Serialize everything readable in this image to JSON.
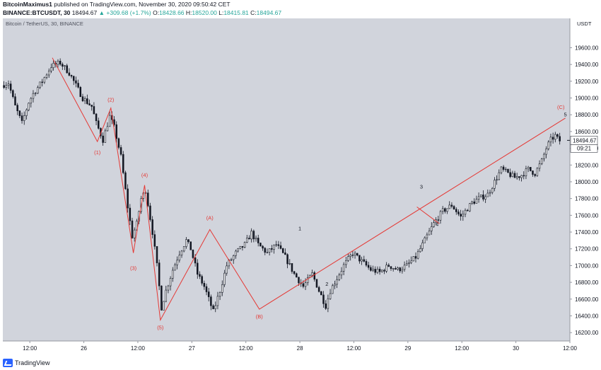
{
  "header": {
    "author": "BitcoinMaximus1",
    "published": "published on TradingView.com, November 30, 2020 09:50:42 CET",
    "symbol": "BINANCE:BTCUSDT, 30",
    "last": "18494.67",
    "change": "▲ +309.68 (+1.7%)",
    "o_label": "O:",
    "o_value": "18428.66",
    "h_label": "H:",
    "h_value": "18520.00",
    "l_label": "L:",
    "l_value": "18415.81",
    "c_label": "C:",
    "c_value": "18494.67"
  },
  "footer": {
    "brand": "TradingView"
  },
  "colors": {
    "background": "#d1d4dc",
    "candle": "#131722",
    "wave_line": "#e53935",
    "wave_label_red": "#e53935",
    "wave_label_black": "#131722",
    "price_badge": "#ffffff"
  },
  "chart_data": {
    "type": "candlestick",
    "title": "Bitcoin / TetherUS, 30, BINANCE",
    "y_axis_unit": "USDT",
    "ylim": [
      16100,
      19950
    ],
    "y_ticks": [
      16200,
      16400,
      16600,
      16800,
      17000,
      17200,
      17400,
      17600,
      17800,
      18000,
      18200,
      18400,
      18600,
      18800,
      19000,
      19200,
      19400,
      19600
    ],
    "y_tick_labels": [
      "16200.00",
      "16400.00",
      "16600.00",
      "16800.00",
      "17000.00",
      "17200.00",
      "17400.00",
      "17600.00",
      "17800.00",
      "18000.00",
      "18200.00",
      "18400.00",
      "18600.00",
      "18800.00",
      "19000.00",
      "19200.00",
      "19400.00",
      "19600.00"
    ],
    "x_time_range": [
      "2020-11-25T06:00",
      "2020-11-30T12:00"
    ],
    "x_ticks": [
      {
        "t": "2020-11-25T12:00",
        "label": "12:00"
      },
      {
        "t": "2020-11-26T00:00",
        "label": "26"
      },
      {
        "t": "2020-11-26T12:00",
        "label": "12:00"
      },
      {
        "t": "2020-11-27T00:00",
        "label": "27"
      },
      {
        "t": "2020-11-27T12:00",
        "label": "12:00"
      },
      {
        "t": "2020-11-28T00:00",
        "label": "28"
      },
      {
        "t": "2020-11-28T12:00",
        "label": "12:00"
      },
      {
        "t": "2020-11-29T00:00",
        "label": "29"
      },
      {
        "t": "2020-11-29T12:00",
        "label": "12:00"
      },
      {
        "t": "2020-11-30T00:00",
        "label": "30"
      },
      {
        "t": "2020-11-30T12:00",
        "label": "12:00"
      }
    ],
    "price_path": [
      [
        "2020-11-25T06:00",
        19150
      ],
      [
        "2020-11-25T07:30",
        19180
      ],
      [
        "2020-11-25T09:00",
        18900
      ],
      [
        "2020-11-25T10:30",
        18700
      ],
      [
        "2020-11-25T12:00",
        18950
      ],
      [
        "2020-11-25T13:00",
        19050
      ],
      [
        "2020-11-25T15:00",
        19200
      ],
      [
        "2020-11-25T17:00",
        19380
      ],
      [
        "2020-11-25T19:00",
        19420
      ],
      [
        "2020-11-25T21:00",
        19300
      ],
      [
        "2020-11-25T23:00",
        19100
      ],
      [
        "2020-11-26T00:00",
        19000
      ],
      [
        "2020-11-26T02:00",
        18900
      ],
      [
        "2020-11-26T03:00",
        18700
      ],
      [
        "2020-11-26T04:30",
        18500
      ],
      [
        "2020-11-26T06:00",
        18780
      ],
      [
        "2020-11-26T07:00",
        18650
      ],
      [
        "2020-11-26T08:30",
        18300
      ],
      [
        "2020-11-26T10:00",
        17700
      ],
      [
        "2020-11-26T11:00",
        17350
      ],
      [
        "2020-11-26T12:00",
        17500
      ],
      [
        "2020-11-26T13:00",
        17800
      ],
      [
        "2020-11-26T14:00",
        17900
      ],
      [
        "2020-11-26T15:30",
        17400
      ],
      [
        "2020-11-26T16:30",
        17000
      ],
      [
        "2020-11-26T17:30",
        16500
      ],
      [
        "2020-11-26T18:30",
        16700
      ],
      [
        "2020-11-26T20:00",
        16950
      ],
      [
        "2020-11-26T21:30",
        17150
      ],
      [
        "2020-11-26T23:00",
        17300
      ],
      [
        "2020-11-27T00:00",
        17200
      ],
      [
        "2020-11-27T01:30",
        16900
      ],
      [
        "2020-11-27T03:00",
        16750
      ],
      [
        "2020-11-27T04:00",
        16600
      ],
      [
        "2020-11-27T05:00",
        16450
      ],
      [
        "2020-11-27T06:30",
        16700
      ],
      [
        "2020-11-27T08:00",
        17000
      ],
      [
        "2020-11-27T10:00",
        17150
      ],
      [
        "2020-11-27T12:00",
        17250
      ],
      [
        "2020-11-27T13:30",
        17390
      ],
      [
        "2020-11-27T15:00",
        17250
      ],
      [
        "2020-11-27T17:00",
        17150
      ],
      [
        "2020-11-27T19:00",
        17250
      ],
      [
        "2020-11-27T21:00",
        17100
      ],
      [
        "2020-11-27T23:00",
        16900
      ],
      [
        "2020-11-28T01:00",
        16750
      ],
      [
        "2020-11-28T03:00",
        16900
      ],
      [
        "2020-11-28T04:30",
        16700
      ],
      [
        "2020-11-28T06:00",
        16520
      ],
      [
        "2020-11-28T07:00",
        16700
      ],
      [
        "2020-11-28T08:30",
        16850
      ],
      [
        "2020-11-28T10:00",
        17000
      ],
      [
        "2020-11-28T12:00",
        17150
      ],
      [
        "2020-11-28T14:00",
        17050
      ],
      [
        "2020-11-28T16:00",
        16950
      ],
      [
        "2020-11-28T18:00",
        16920
      ],
      [
        "2020-11-28T20:00",
        17000
      ],
      [
        "2020-11-28T22:00",
        16950
      ],
      [
        "2020-11-29T00:00",
        17000
      ],
      [
        "2020-11-29T02:00",
        17100
      ],
      [
        "2020-11-29T04:00",
        17300
      ],
      [
        "2020-11-29T06:00",
        17500
      ],
      [
        "2020-11-29T08:00",
        17650
      ],
      [
        "2020-11-29T10:00",
        17720
      ],
      [
        "2020-11-29T11:00",
        17650
      ],
      [
        "2020-11-29T12:00",
        17580
      ],
      [
        "2020-11-29T13:00",
        17650
      ],
      [
        "2020-11-29T14:30",
        17750
      ],
      [
        "2020-11-29T16:00",
        17800
      ],
      [
        "2020-11-29T18:00",
        17850
      ],
      [
        "2020-11-29T19:30",
        18000
      ],
      [
        "2020-11-29T21:00",
        18150
      ],
      [
        "2020-11-29T22:30",
        18100
      ],
      [
        "2020-11-30T00:00",
        18050
      ],
      [
        "2020-11-30T01:30",
        18080
      ],
      [
        "2020-11-30T03:00",
        18150
      ],
      [
        "2020-11-30T04:30",
        18100
      ],
      [
        "2020-11-30T06:00",
        18250
      ],
      [
        "2020-11-30T07:00",
        18400
      ],
      [
        "2020-11-30T08:00",
        18500
      ],
      [
        "2020-11-30T09:00",
        18550
      ],
      [
        "2020-11-30T09:50",
        18490
      ]
    ],
    "wave_lines": [
      [
        [
          "2020-11-25T17:00",
          19480
        ],
        [
          "2020-11-26T03:00",
          18480
        ],
        [
          "2020-11-26T06:00",
          18880
        ],
        [
          "2020-11-26T11:00",
          17150
        ],
        [
          "2020-11-26T13:30",
          17960
        ],
        [
          "2020-11-26T17:00",
          16350
        ],
        [
          "2020-11-27T04:00",
          17430
        ],
        [
          "2020-11-27T15:00",
          16480
        ],
        [
          "2020-11-30T11:00",
          18760
        ]
      ],
      [
        [
          "2020-11-29T02:00",
          17700
        ],
        [
          "2020-11-29T07:00",
          17500
        ]
      ]
    ],
    "wave_labels": [
      {
        "t": "2020-11-26T03:00",
        "p": 18330,
        "text": "(1)",
        "color": "red"
      },
      {
        "t": "2020-11-26T06:00",
        "p": 18960,
        "text": "(2)",
        "color": "red"
      },
      {
        "t": "2020-11-26T11:00",
        "p": 16950,
        "text": "(3)",
        "color": "red"
      },
      {
        "t": "2020-11-26T13:30",
        "p": 18060,
        "text": "(4)",
        "color": "red"
      },
      {
        "t": "2020-11-26T17:00",
        "p": 16240,
        "text": "(5)",
        "color": "red"
      },
      {
        "t": "2020-11-27T04:00",
        "p": 17550,
        "text": "(A)",
        "color": "red"
      },
      {
        "t": "2020-11-27T15:00",
        "p": 16370,
        "text": "(B)",
        "color": "red"
      },
      {
        "t": "2020-11-30T10:00",
        "p": 18870,
        "text": "(C)",
        "color": "red"
      },
      {
        "t": "2020-11-28T00:00",
        "p": 17420,
        "text": "1",
        "color": "black"
      },
      {
        "t": "2020-11-28T06:00",
        "p": 16760,
        "text": "2",
        "color": "black"
      },
      {
        "t": "2020-11-29T03:00",
        "p": 17920,
        "text": "3",
        "color": "black"
      },
      {
        "t": "2020-11-29T06:30",
        "p": 17470,
        "text": "4",
        "color": "black"
      },
      {
        "t": "2020-11-30T11:00",
        "p": 18780,
        "text": "5",
        "color": "black"
      }
    ],
    "last_price": 18494.67,
    "last_price_label": "18494.67",
    "countdown_label": "09:21"
  }
}
